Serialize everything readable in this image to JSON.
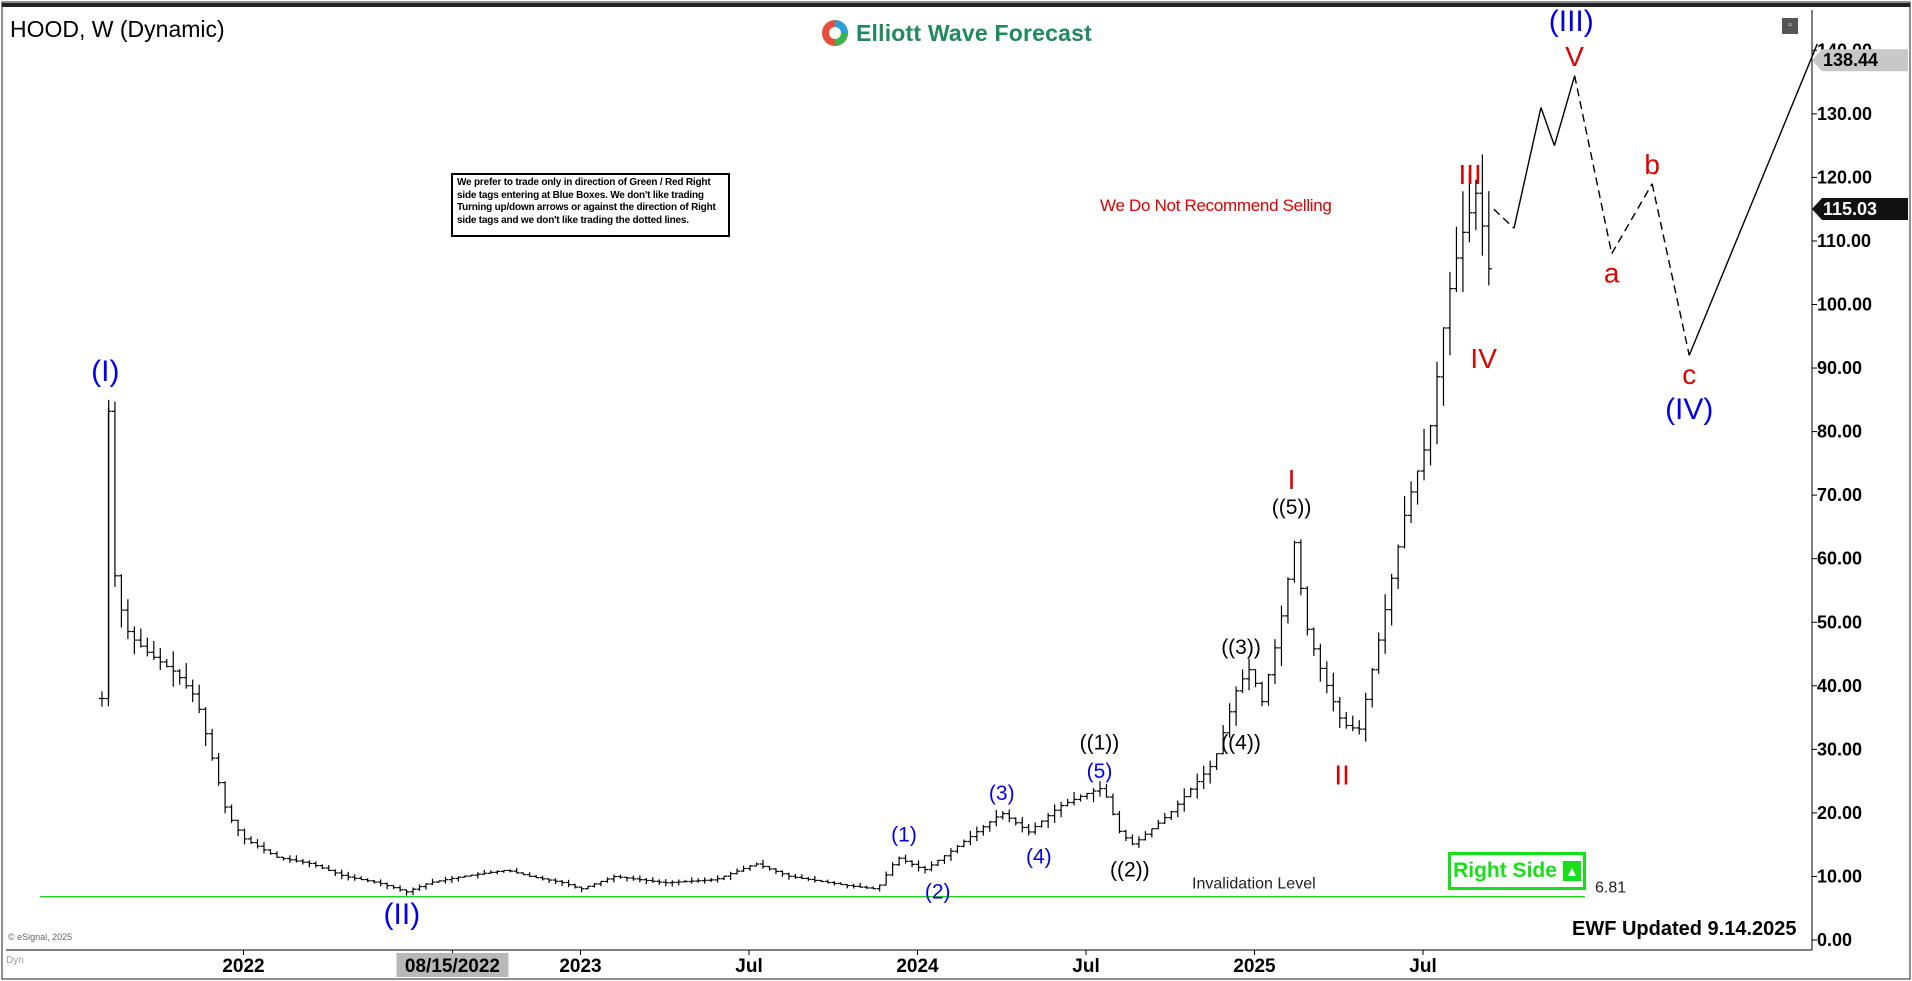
{
  "header": {
    "symbol": "HOOD, W (Dynamic)",
    "brand": "Elliott Wave Forecast",
    "brand_color": "#1f8a5b"
  },
  "disclaimer": "We prefer to trade only in direction of Green / Red Right side tags entering at Blue Boxes. We don't like trading Turning up/down arrows or against the direction of Right side tags and we don't like trading the dotted lines.",
  "no_sell_note": "We Do Not Recommend Selling",
  "updated_note": "EWF Updated 9.14.2025",
  "right_side_tag": "Right Side",
  "right_side_color": "#18e018",
  "copyright": "© eSignal, 2025",
  "dyn_label": "Dyn",
  "corner_icon": "restore-window-icon",
  "chart_data": {
    "type": "bar",
    "symbol": "HOOD",
    "timeframe": "W",
    "ylim": [
      0,
      145
    ],
    "y_ticks": [
      "0.00",
      "10.00",
      "20.00",
      "30.00",
      "40.00",
      "50.00",
      "60.00",
      "70.00",
      "80.00",
      "90.00",
      "100.00",
      "110.00",
      "120.00",
      "130.00",
      "140.00"
    ],
    "x_ticks": [
      {
        "label": "2022",
        "t": 2022.0
      },
      {
        "label": "08/15/2022",
        "t": 2022.62,
        "highlight": true
      },
      {
        "label": "2023",
        "t": 2023.0
      },
      {
        "label": "Jul",
        "t": 2023.5
      },
      {
        "label": "2024",
        "t": 2024.0
      },
      {
        "label": "Jul",
        "t": 2024.5
      },
      {
        "label": "2025",
        "t": 2025.0
      },
      {
        "label": "Jul",
        "t": 2025.5
      }
    ],
    "price_tags": [
      {
        "label": "138.44",
        "value": 138.44,
        "style": "gray"
      },
      {
        "label": "115.03",
        "value": 115.03,
        "style": "black"
      }
    ],
    "invalidation": {
      "label": "Invalidation Level",
      "value": 6.81,
      "value_label": "6.81",
      "color": "#00cc00"
    },
    "anchors": [
      [
        2021.58,
        38
      ],
      [
        2021.6,
        85
      ],
      [
        2021.62,
        55
      ],
      [
        2021.66,
        48
      ],
      [
        2021.72,
        45
      ],
      [
        2021.8,
        42
      ],
      [
        2021.86,
        38
      ],
      [
        2021.9,
        30
      ],
      [
        2021.95,
        20
      ],
      [
        2022.0,
        16
      ],
      [
        2022.1,
        13
      ],
      [
        2022.2,
        12
      ],
      [
        2022.3,
        10
      ],
      [
        2022.4,
        9
      ],
      [
        2022.46,
        8
      ],
      [
        2022.48,
        7.5
      ],
      [
        2022.55,
        9
      ],
      [
        2022.65,
        10
      ],
      [
        2022.78,
        11
      ],
      [
        2022.85,
        10
      ],
      [
        2022.95,
        9
      ],
      [
        2023.0,
        8
      ],
      [
        2023.1,
        10
      ],
      [
        2023.25,
        9
      ],
      [
        2023.4,
        9.5
      ],
      [
        2023.52,
        12
      ],
      [
        2023.62,
        10
      ],
      [
        2023.8,
        8.5
      ],
      [
        2023.88,
        8
      ],
      [
        2023.94,
        13
      ],
      [
        2024.02,
        11
      ],
      [
        2024.1,
        14
      ],
      [
        2024.25,
        20
      ],
      [
        2024.33,
        17
      ],
      [
        2024.42,
        21
      ],
      [
        2024.5,
        23
      ],
      [
        2024.55,
        24
      ],
      [
        2024.6,
        17
      ],
      [
        2024.64,
        15
      ],
      [
        2024.75,
        20
      ],
      [
        2024.88,
        28
      ],
      [
        2024.95,
        40
      ],
      [
        2024.99,
        43
      ],
      [
        2025.02,
        37
      ],
      [
        2025.07,
        48
      ],
      [
        2025.11,
        60
      ],
      [
        2025.12,
        63
      ],
      [
        2025.15,
        50
      ],
      [
        2025.2,
        42
      ],
      [
        2025.26,
        34
      ],
      [
        2025.31,
        33
      ],
      [
        2025.38,
        50
      ],
      [
        2025.45,
        68
      ],
      [
        2025.52,
        80
      ],
      [
        2025.57,
        100
      ],
      [
        2025.61,
        110
      ],
      [
        2025.66,
        118
      ],
      [
        2025.7,
        104
      ],
      [
        2025.71,
        115
      ]
    ],
    "projection": [
      {
        "from": [
          2025.71,
          115
        ],
        "to": [
          2025.77,
          112
        ],
        "dashed": true
      },
      {
        "from": [
          2025.77,
          112
        ],
        "to": [
          2025.85,
          131
        ],
        "dashed": false
      },
      {
        "from": [
          2025.85,
          131
        ],
        "to": [
          2025.89,
          125
        ],
        "dashed": false
      },
      {
        "from": [
          2025.89,
          125
        ],
        "to": [
          2025.95,
          136
        ],
        "dashed": false
      },
      {
        "from": [
          2025.95,
          136
        ],
        "to": [
          2026.06,
          108
        ],
        "dashed": true
      },
      {
        "from": [
          2026.06,
          108
        ],
        "to": [
          2026.18,
          119
        ],
        "dashed": true
      },
      {
        "from": [
          2026.18,
          119
        ],
        "to": [
          2026.29,
          92
        ],
        "dashed": true
      },
      {
        "from": [
          2026.29,
          92
        ],
        "to": [
          2026.67,
          141
        ],
        "dashed": false
      }
    ],
    "wave_labels": [
      {
        "text": "(I)",
        "t": 2021.59,
        "v": 88,
        "color": "blue",
        "size": "xl"
      },
      {
        "text": "(II)",
        "t": 2022.47,
        "v": 2.5,
        "color": "blue",
        "size": "xl"
      },
      {
        "text": "(1)",
        "t": 2023.96,
        "v": 15.5,
        "color": "blue",
        "size": "m"
      },
      {
        "text": "(2)",
        "t": 2024.06,
        "v": 6.5,
        "color": "blue",
        "size": "m"
      },
      {
        "text": "(3)",
        "t": 2024.25,
        "v": 22,
        "color": "blue",
        "size": "m"
      },
      {
        "text": "(4)",
        "t": 2024.36,
        "v": 12,
        "color": "blue",
        "size": "m"
      },
      {
        "text": "(5)",
        "t": 2024.54,
        "v": 25.5,
        "color": "blue",
        "size": "m"
      },
      {
        "text": "((1))",
        "t": 2024.54,
        "v": 30,
        "color": "black",
        "size": "m"
      },
      {
        "text": "((2))",
        "t": 2024.63,
        "v": 10,
        "color": "black",
        "size": "m"
      },
      {
        "text": "((3))",
        "t": 2024.96,
        "v": 45,
        "color": "black",
        "size": "m"
      },
      {
        "text": "((4))",
        "t": 2024.96,
        "v": 30,
        "color": "black",
        "size": "m"
      },
      {
        "text": "((5))",
        "t": 2025.11,
        "v": 67,
        "color": "black",
        "size": "m"
      },
      {
        "text": "I",
        "t": 2025.11,
        "v": 71,
        "color": "red",
        "size": "l"
      },
      {
        "text": "II",
        "t": 2025.26,
        "v": 24.5,
        "color": "red",
        "size": "l"
      },
      {
        "text": "III",
        "t": 2025.64,
        "v": 119,
        "color": "red",
        "size": "l"
      },
      {
        "text": "IV",
        "t": 2025.68,
        "v": 90,
        "color": "red",
        "size": "l"
      },
      {
        "text": "V",
        "t": 2025.95,
        "v": 137.5,
        "color": "red",
        "size": "l"
      },
      {
        "text": "(III)",
        "t": 2025.94,
        "v": 143,
        "color": "blue",
        "size": "xl"
      },
      {
        "text": "a",
        "t": 2026.06,
        "v": 103.5,
        "color": "red",
        "size": "l"
      },
      {
        "text": "b",
        "t": 2026.18,
        "v": 120.5,
        "color": "red",
        "size": "l"
      },
      {
        "text": "c",
        "t": 2026.29,
        "v": 87.5,
        "color": "red",
        "size": "l"
      },
      {
        "text": "(IV)",
        "t": 2026.29,
        "v": 82,
        "color": "blue",
        "size": "xl"
      }
    ]
  }
}
